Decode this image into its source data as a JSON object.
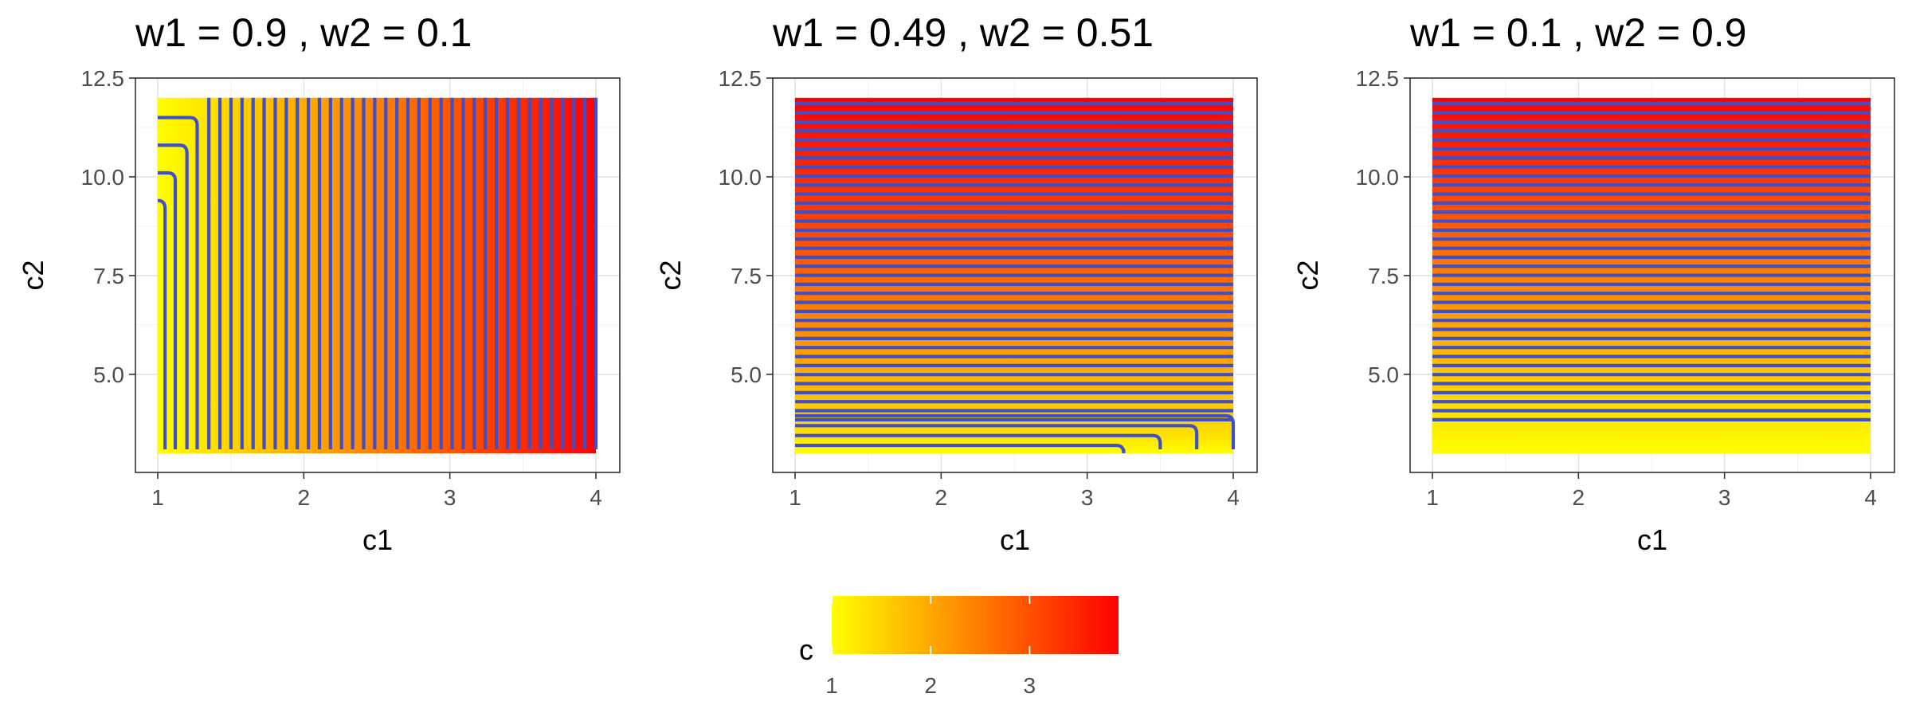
{
  "chart_data": {
    "type": "heatmap",
    "description_of_layers": "filled raster of c with contour lines",
    "panels": [
      {
        "title": "w1 = 0.9 , w2 = 0.1",
        "w1": 0.9,
        "w2": 0.1,
        "xlabel": "c1",
        "ylabel": "c2",
        "xlim": [
          1,
          4
        ],
        "ylim": [
          3,
          12
        ],
        "x_ticks": [
          1,
          2,
          3,
          4
        ],
        "x_tick_labels": [
          "1",
          "2",
          "3",
          "4"
        ],
        "y_ticks": [
          5,
          7.5,
          10,
          12.5
        ],
        "y_tick_labels": [
          "5.0",
          "7.5",
          "10.0",
          "12.5"
        ],
        "contour_levels": {
          "start": 1.025,
          "step": 0.075,
          "count": 39
        }
      },
      {
        "title": "w1 = 0.49 , w2 = 0.51",
        "w1": 0.49,
        "w2": 0.51,
        "xlabel": "c1",
        "ylabel": "c2",
        "xlim": [
          1,
          4
        ],
        "ylim": [
          3,
          12
        ],
        "x_ticks": [
          1,
          2,
          3,
          4
        ],
        "x_tick_labels": [
          "1",
          "2",
          "3",
          "4"
        ],
        "y_ticks": [
          5,
          7.5,
          10,
          12.5
        ],
        "y_tick_labels": [
          "5.0",
          "7.5",
          "10.0",
          "12.5"
        ],
        "contour_levels": {
          "start": 1.025,
          "step": 0.075,
          "count": 39
        }
      },
      {
        "title": "w1 = 0.1 , w2 = 0.9",
        "w1": 0.1,
        "w2": 0.9,
        "xlabel": "c1",
        "ylabel": "c2",
        "xlim": [
          1,
          4
        ],
        "ylim": [
          3,
          12
        ],
        "x_ticks": [
          1,
          2,
          3,
          4
        ],
        "x_tick_labels": [
          "1",
          "2",
          "3",
          "4"
        ],
        "y_ticks": [
          5,
          7.5,
          10,
          12.5
        ],
        "y_tick_labels": [
          "5.0",
          "7.5",
          "10.0",
          "12.5"
        ],
        "contour_levels": {
          "start": 1.025,
          "step": 0.075,
          "count": 39
        }
      }
    ],
    "legend": {
      "title": "c",
      "position": "bottom",
      "range": [
        1,
        3.9
      ],
      "ticks": [
        1,
        2,
        3
      ],
      "tick_labels": [
        "1",
        "2",
        "3"
      ],
      "colors": {
        "low": "#ffff00",
        "high": "#ff0000"
      }
    },
    "grid": true,
    "theme": "bw",
    "contour_color": "#3e4fc7"
  }
}
